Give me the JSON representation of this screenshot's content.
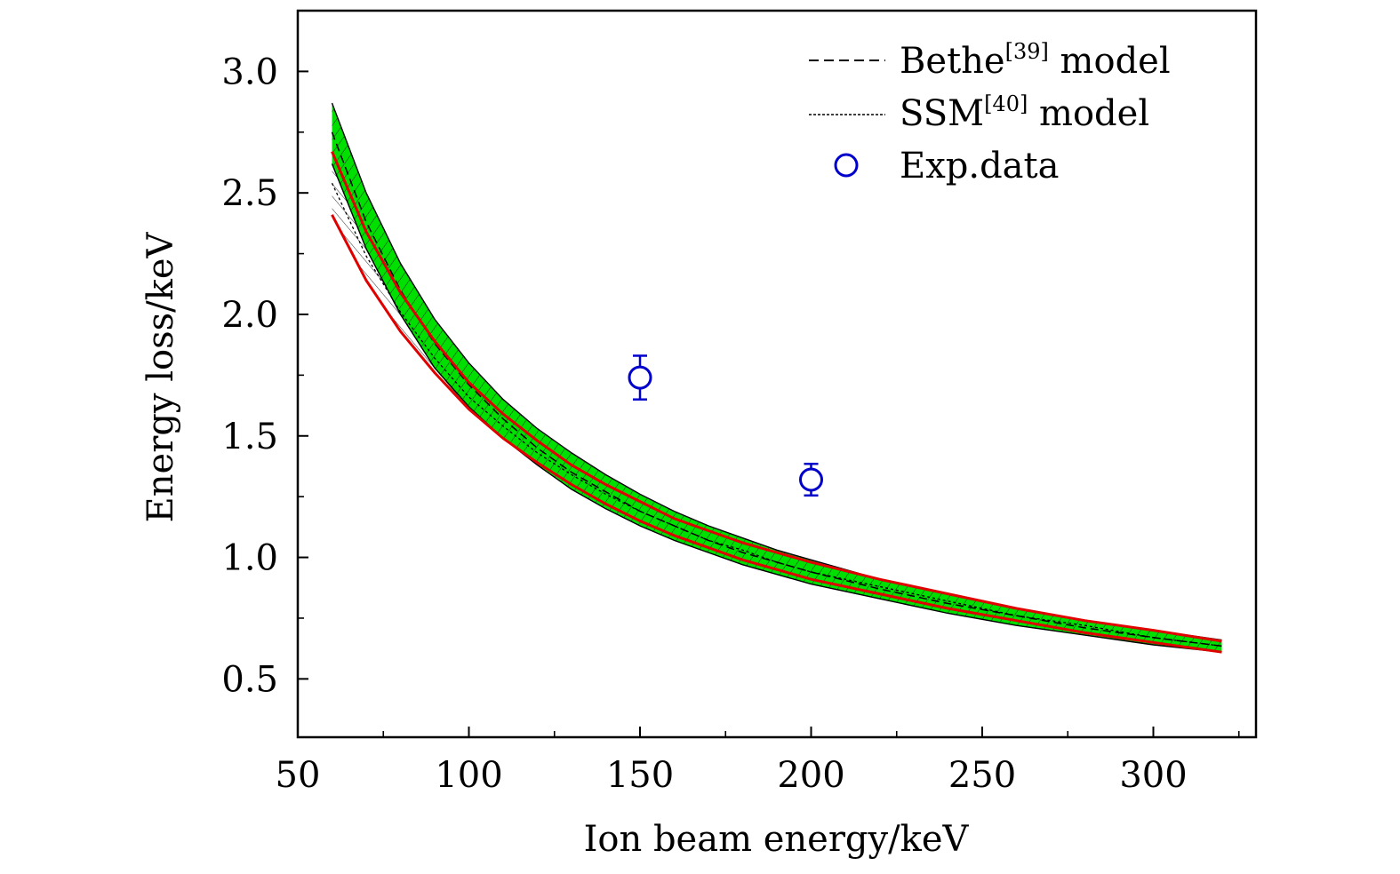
{
  "chart_data": {
    "type": "line",
    "xlabel": "Ion beam energy/keV",
    "ylabel": "Energy loss/keV",
    "xlim": [
      50,
      330
    ],
    "ylim": [
      0.26,
      3.25
    ],
    "xticks": [
      50,
      100,
      150,
      200,
      250,
      300
    ],
    "xtick_labels": [
      "50",
      "100",
      "150",
      "200",
      "250",
      "300"
    ],
    "yticks": [
      0.5,
      1.0,
      1.5,
      2.0,
      2.5,
      3.0
    ],
    "ytick_labels": [
      "0.5",
      "1.0",
      "1.5",
      "2.0",
      "2.5",
      "3.0"
    ],
    "grid": false,
    "legend_position": "top-right",
    "legend": [
      {
        "label_main": "Bethe",
        "label_sup": "[39]",
        "label_tail": " model",
        "style": "dashed"
      },
      {
        "label_main": "SSM",
        "label_sup": "[40]",
        "label_tail": " model",
        "style": "dotted"
      },
      {
        "label_main": "Exp.data",
        "label_sup": "",
        "label_tail": "",
        "style": "circle"
      }
    ],
    "x": [
      60,
      70,
      80,
      90,
      100,
      110,
      120,
      130,
      140,
      150,
      160,
      170,
      180,
      190,
      200,
      220,
      240,
      260,
      280,
      300,
      320
    ],
    "bands": [
      {
        "name": "Bethe",
        "fill": "#00e000",
        "upper": [
          2.87,
          2.5,
          2.21,
          1.98,
          1.8,
          1.65,
          1.53,
          1.43,
          1.34,
          1.26,
          1.19,
          1.13,
          1.08,
          1.03,
          0.99,
          0.91,
          0.85,
          0.79,
          0.74,
          0.7,
          0.66
        ],
        "lower": [
          2.62,
          2.27,
          2.0,
          1.78,
          1.62,
          1.49,
          1.38,
          1.28,
          1.2,
          1.13,
          1.07,
          1.02,
          0.97,
          0.93,
          0.89,
          0.83,
          0.77,
          0.72,
          0.68,
          0.64,
          0.61
        ],
        "center": [
          2.75,
          2.38,
          2.1,
          1.88,
          1.71,
          1.57,
          1.45,
          1.35,
          1.27,
          1.19,
          1.13,
          1.07,
          1.02,
          0.98,
          0.94,
          0.87,
          0.81,
          0.76,
          0.71,
          0.67,
          0.635
        ]
      },
      {
        "name": "SSM",
        "fill": "none",
        "upper": [
          2.67,
          2.34,
          2.09,
          1.89,
          1.72,
          1.59,
          1.48,
          1.38,
          1.3,
          1.23,
          1.16,
          1.11,
          1.06,
          1.02,
          0.98,
          0.91,
          0.85,
          0.79,
          0.74,
          0.7,
          0.655
        ],
        "lower": [
          2.41,
          2.14,
          1.93,
          1.76,
          1.61,
          1.49,
          1.39,
          1.3,
          1.22,
          1.15,
          1.09,
          1.04,
          0.99,
          0.95,
          0.91,
          0.85,
          0.79,
          0.74,
          0.69,
          0.65,
          0.61
        ],
        "center": [
          2.54,
          2.24,
          2.01,
          1.82,
          1.66,
          1.54,
          1.43,
          1.34,
          1.26,
          1.19,
          1.13,
          1.07,
          1.03,
          0.98,
          0.94,
          0.88,
          0.82,
          0.76,
          0.72,
          0.67,
          0.635
        ]
      }
    ],
    "red_lines": {
      "color": "#e00000",
      "upper": [
        2.67,
        2.34,
        2.09,
        1.89,
        1.72,
        1.59,
        1.48,
        1.38,
        1.3,
        1.23,
        1.16,
        1.11,
        1.06,
        1.02,
        0.98,
        0.91,
        0.85,
        0.79,
        0.74,
        0.7,
        0.655
      ],
      "lower": [
        2.41,
        2.14,
        1.93,
        1.76,
        1.61,
        1.49,
        1.39,
        1.3,
        1.22,
        1.15,
        1.09,
        1.04,
        0.99,
        0.95,
        0.91,
        0.85,
        0.79,
        0.74,
        0.69,
        0.65,
        0.61
      ]
    },
    "exp_data": {
      "color": "#0000cc",
      "points": [
        {
          "x": 150,
          "y": 1.74,
          "err": 0.09
        },
        {
          "x": 200,
          "y": 1.32,
          "err": 0.065
        }
      ]
    }
  }
}
